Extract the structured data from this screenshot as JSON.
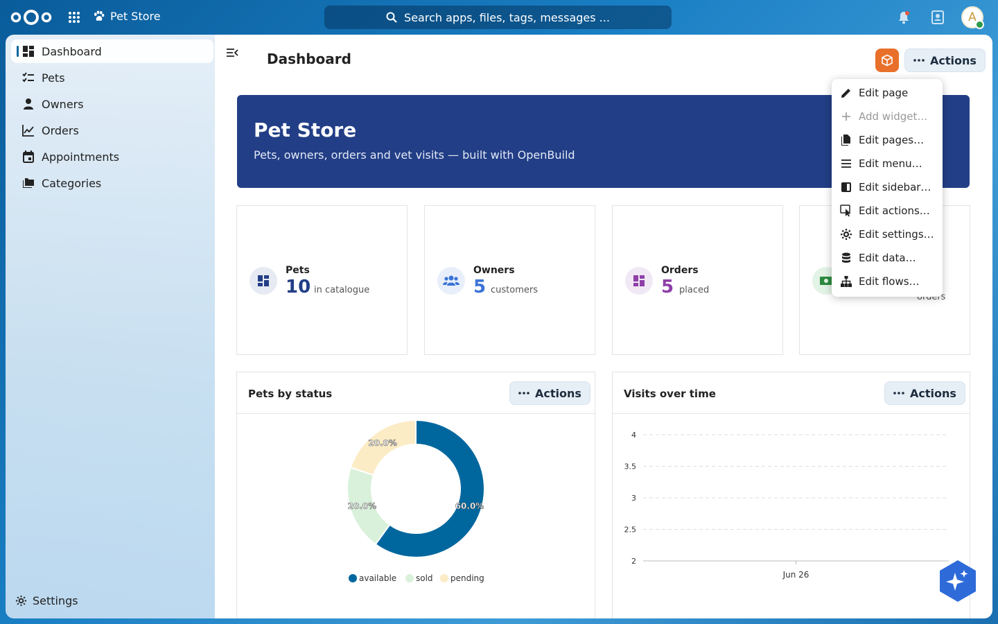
{
  "header": {
    "app_name": "Pet Store",
    "search_placeholder": "Search apps, files, tags, messages ...",
    "avatar_initial": "A"
  },
  "sidebar": {
    "items": [
      {
        "label": "Dashboard",
        "icon": "dashboard-icon",
        "active": true
      },
      {
        "label": "Pets",
        "icon": "checklist-icon"
      },
      {
        "label": "Owners",
        "icon": "person-icon"
      },
      {
        "label": "Orders",
        "icon": "chart-line-icon"
      },
      {
        "label": "Appointments",
        "icon": "calendar-icon"
      },
      {
        "label": "Categories",
        "icon": "folders-icon"
      }
    ],
    "settings_label": "Settings"
  },
  "main": {
    "title": "Dashboard",
    "actions_label": "Actions",
    "hero": {
      "title": "Pet Store",
      "subtitle": "Pets, owners, orders and vet visits — built with OpenBuild"
    },
    "stats": [
      {
        "label": "Pets",
        "value": "10",
        "sub": "in catalogue",
        "color": "#223e86",
        "icon_bg": "#e6eaf3"
      },
      {
        "label": "Owners",
        "value": "5",
        "sub": "customers",
        "color": "#3b74d6",
        "icon_bg": "#e8effb"
      },
      {
        "label": "Orders",
        "value": "5",
        "sub": "placed",
        "color": "#8e3fa8",
        "icon_bg": "#f1e8f5"
      },
      {
        "label": "",
        "value": "",
        "sub": "orders",
        "color": "#2d8a3e",
        "icon_bg": "#e3f3e6"
      }
    ],
    "panels": [
      {
        "title": "Pets by status",
        "actions_label": "Actions"
      },
      {
        "title": "Visits over time",
        "actions_label": "Actions"
      }
    ]
  },
  "menu": {
    "items": [
      {
        "label": "Edit page",
        "icon": "pencil-icon"
      },
      {
        "label": "Add widget…",
        "icon": "plus-icon",
        "disabled": true
      },
      {
        "label": "Edit pages…",
        "icon": "file-icon"
      },
      {
        "label": "Edit menu…",
        "icon": "menu-icon"
      },
      {
        "label": "Edit sidebar…",
        "icon": "sidebar-icon"
      },
      {
        "label": "Edit actions…",
        "icon": "cursor-click-icon"
      },
      {
        "label": "Edit settings…",
        "icon": "gear-icon"
      },
      {
        "label": "Edit data…",
        "icon": "database-icon"
      },
      {
        "label": "Edit flows…",
        "icon": "sitemap-icon"
      }
    ]
  },
  "chart_data": [
    {
      "type": "pie",
      "title": "Pets by status",
      "donut": true,
      "categories": [
        "available",
        "sold",
        "pending"
      ],
      "values": [
        60.0,
        20.0,
        20.0
      ],
      "labels": [
        "60.0%",
        "20.0%",
        "20.0%"
      ],
      "colors": [
        "#00679e",
        "#d9f1da",
        "#fcecc6"
      ],
      "legend": "bottom"
    },
    {
      "type": "line",
      "title": "Visits over time",
      "x_ticks": [
        "Jun 26"
      ],
      "y_ticks": [
        "2",
        "2.5",
        "3",
        "3.5",
        "4"
      ],
      "ylim": [
        2,
        4
      ],
      "grid": true,
      "series": []
    }
  ]
}
